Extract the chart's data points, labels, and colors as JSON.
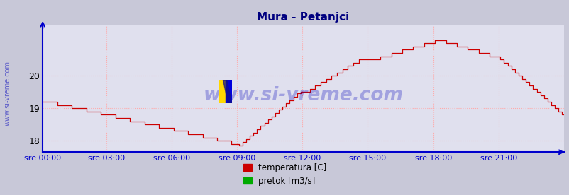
{
  "title": "Mura - Petanjci",
  "title_color": "#000080",
  "background_color": "#c8c8d8",
  "plot_bg_color": "#e0e0ee",
  "grid_color": "#ffaaaa",
  "grid_linestyle": ":",
  "x_labels": [
    "sre 00:00",
    "sre 03:00",
    "sre 06:00",
    "sre 09:00",
    "sre 12:00",
    "sre 15:00",
    "sre 18:00",
    "sre 21:00"
  ],
  "x_ticks_norm": [
    0.0,
    0.125,
    0.25,
    0.375,
    0.5,
    0.625,
    0.75,
    0.875
  ],
  "ylim": [
    17.65,
    21.55
  ],
  "yticks": [
    18,
    19,
    20
  ],
  "line_color": "#cc0000",
  "line_color2": "#00aa00",
  "axis_color": "#0000cc",
  "watermark": "www.si-vreme.com",
  "watermark_color": "#0000bb",
  "legend_labels": [
    "temperatura [C]",
    "pretok [m3/s]"
  ],
  "legend_colors": [
    "#cc0000",
    "#00aa00"
  ],
  "n_points": 288
}
